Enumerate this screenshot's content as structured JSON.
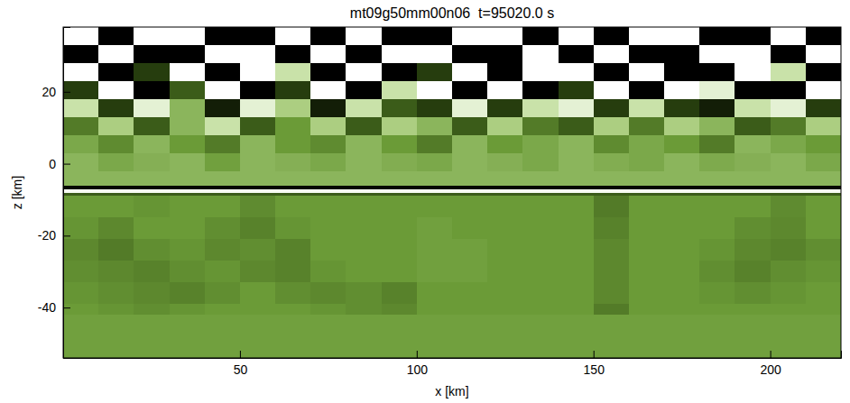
{
  "chart_data": {
    "type": "heatmap",
    "title": "mt09g50mm00n06  t=95020.0 s",
    "x_label": "x [km]",
    "y_label": "z [km]",
    "xlim": [
      0,
      220
    ],
    "ylim": [
      -54,
      38
    ],
    "xticks": [
      50,
      100,
      150,
      200
    ],
    "yticks": [
      -40,
      -20,
      0,
      20
    ],
    "color_range": [
      0,
      1
    ],
    "x_edges": [
      0,
      10,
      20,
      30,
      40,
      50,
      60,
      70,
      80,
      90,
      100,
      110,
      120,
      130,
      140,
      150,
      160,
      170,
      180,
      190,
      200,
      210,
      220
    ],
    "y_edges": [
      38,
      33,
      28,
      23,
      18,
      13,
      8,
      3,
      -2,
      -6,
      -7,
      -8,
      -9,
      -15,
      -21,
      -27,
      -33,
      -39,
      -42,
      -54
    ],
    "cells": [
      [
        1,
        0,
        1,
        1,
        0,
        0,
        1,
        0,
        1,
        0,
        0,
        1,
        1,
        0,
        1,
        0,
        1,
        1,
        0,
        0,
        1,
        0
      ],
      [
        0,
        1,
        0,
        0,
        1,
        1,
        0,
        1,
        0,
        1,
        1,
        0,
        0,
        1,
        0,
        1,
        0,
        0,
        1,
        1,
        0,
        1
      ],
      [
        1,
        0,
        0.2,
        1,
        0,
        1,
        0.8,
        0,
        1,
        0,
        0.2,
        1,
        0,
        1,
        1,
        0,
        1,
        0,
        0,
        1,
        0.8,
        0
      ],
      [
        0.2,
        1,
        0,
        0.3,
        1,
        0,
        0.2,
        1,
        0,
        0.8,
        1,
        0,
        1,
        0,
        0.2,
        1,
        0,
        1,
        0.9,
        0,
        0,
        1
      ],
      [
        0.8,
        0.2,
        0.9,
        0.6,
        0.1,
        0.9,
        0.7,
        0.1,
        0.8,
        0.3,
        0.2,
        0.9,
        0.2,
        0.8,
        0.9,
        0.2,
        0.8,
        0.2,
        0.1,
        0.8,
        0.9,
        0.2
      ],
      [
        0.4,
        0.7,
        0.3,
        0.6,
        0.8,
        0.3,
        0.5,
        0.7,
        0.3,
        0.7,
        0.6,
        0.3,
        0.7,
        0.4,
        0.3,
        0.7,
        0.4,
        0.7,
        0.6,
        0.3,
        0.4,
        0.7
      ],
      [
        0.55,
        0.45,
        0.6,
        0.5,
        0.4,
        0.6,
        0.5,
        0.45,
        0.6,
        0.5,
        0.4,
        0.6,
        0.5,
        0.55,
        0.6,
        0.45,
        0.55,
        0.5,
        0.4,
        0.6,
        0.55,
        0.5
      ],
      [
        0.6,
        0.55,
        0.58,
        0.6,
        0.52,
        0.6,
        0.58,
        0.55,
        0.6,
        0.57,
        0.55,
        0.6,
        0.58,
        0.55,
        0.6,
        0.57,
        0.55,
        0.6,
        0.56,
        0.58,
        0.6,
        0.55
      ],
      [
        0.6,
        0.6,
        0.6,
        0.6,
        0.6,
        0.6,
        0.6,
        0.6,
        0.6,
        0.6,
        0.6,
        0.6,
        0.6,
        0.6,
        0.6,
        0.6,
        0.6,
        0.6,
        0.6,
        0.6,
        0.6,
        0.6
      ],
      [
        0.03,
        0.03,
        0.03,
        0.03,
        0.03,
        0.03,
        0.03,
        0.03,
        0.03,
        0.03,
        0.03,
        0.03,
        0.03,
        0.03,
        0.03,
        0.03,
        0.03,
        0.03,
        0.03,
        0.03,
        0.03,
        0.03
      ],
      [
        0.97,
        0.97,
        0.97,
        0.97,
        0.97,
        0.97,
        0.97,
        0.97,
        0.97,
        0.97,
        0.97,
        0.97,
        0.97,
        0.97,
        0.97,
        0.97,
        0.97,
        0.97,
        0.97,
        0.97,
        0.97,
        0.97
      ],
      [
        0.3,
        0.3,
        0.3,
        0.3,
        0.3,
        0.3,
        0.3,
        0.3,
        0.3,
        0.3,
        0.3,
        0.3,
        0.3,
        0.3,
        0.3,
        0.3,
        0.3,
        0.3,
        0.3,
        0.3,
        0.3,
        0.3
      ],
      [
        0.5,
        0.5,
        0.48,
        0.5,
        0.5,
        0.45,
        0.5,
        0.5,
        0.5,
        0.5,
        0.5,
        0.5,
        0.5,
        0.5,
        0.5,
        0.4,
        0.5,
        0.5,
        0.5,
        0.5,
        0.45,
        0.5
      ],
      [
        0.48,
        0.44,
        0.5,
        0.5,
        0.46,
        0.42,
        0.48,
        0.5,
        0.5,
        0.5,
        0.52,
        0.5,
        0.5,
        0.5,
        0.5,
        0.42,
        0.5,
        0.5,
        0.5,
        0.46,
        0.44,
        0.5
      ],
      [
        0.44,
        0.4,
        0.46,
        0.48,
        0.44,
        0.46,
        0.42,
        0.5,
        0.5,
        0.5,
        0.52,
        0.52,
        0.5,
        0.5,
        0.5,
        0.44,
        0.5,
        0.5,
        0.48,
        0.44,
        0.42,
        0.46
      ],
      [
        0.46,
        0.44,
        0.42,
        0.46,
        0.48,
        0.44,
        0.42,
        0.48,
        0.5,
        0.5,
        0.52,
        0.52,
        0.5,
        0.5,
        0.5,
        0.44,
        0.5,
        0.5,
        0.46,
        0.42,
        0.46,
        0.48
      ],
      [
        0.48,
        0.46,
        0.44,
        0.42,
        0.46,
        0.5,
        0.46,
        0.44,
        0.46,
        0.42,
        0.5,
        0.5,
        0.5,
        0.5,
        0.5,
        0.44,
        0.5,
        0.5,
        0.48,
        0.46,
        0.48,
        0.5
      ],
      [
        0.5,
        0.48,
        0.46,
        0.48,
        0.5,
        0.5,
        0.5,
        0.48,
        0.46,
        0.44,
        0.5,
        0.5,
        0.5,
        0.5,
        0.5,
        0.4,
        0.5,
        0.5,
        0.5,
        0.5,
        0.5,
        0.5
      ],
      [
        0.52,
        0.52,
        0.52,
        0.52,
        0.52,
        0.52,
        0.52,
        0.52,
        0.52,
        0.52,
        0.52,
        0.52,
        0.52,
        0.52,
        0.52,
        0.52,
        0.52,
        0.52,
        0.52,
        0.52,
        0.52,
        0.52
      ]
    ]
  }
}
